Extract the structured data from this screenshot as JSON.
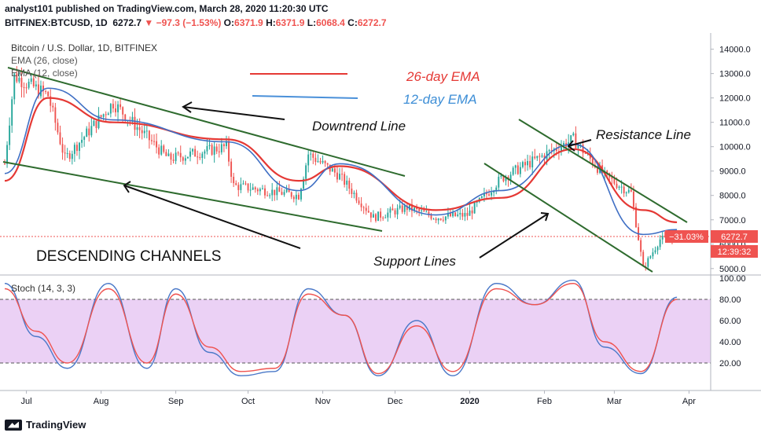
{
  "header": {
    "line1": "analyst101 published on TradingView.com, March 28, 2020 11:20:30 UTC",
    "symbol": "BITFINEX:BTCUSD, 1D",
    "last": "6272.7",
    "change": "▼ −97.3 (−1.53%)",
    "o_label": "O:",
    "o": "6371.9",
    "h_label": "H:",
    "h": "6371.9",
    "l_label": "L:",
    "l": "6068.4",
    "c_label": "C:",
    "c": "6272.7"
  },
  "legend": {
    "title": "Bitcoin / U.S. Dollar, 1D, BITFINEX",
    "ema26": "EMA (26, close)",
    "ema12": "EMA (12, close)"
  },
  "annotations": {
    "ema26": "26-day EMA",
    "ema12": "12-day EMA",
    "downtrend": "Downtrend Line",
    "resistance": "Resistance Line",
    "support": "Support Lines",
    "channels": "DESCENDING CHANNELS"
  },
  "price_tags": {
    "change_pct": "−31.03%",
    "last": "6272.7",
    "countdown": "12:39:32"
  },
  "stoch_label": "Stoch (14, 3, 3)",
  "footer": {
    "brand": "TradingView"
  },
  "colors": {
    "up": "#26a69a",
    "down": "#ef5350",
    "ema26": "#e53935",
    "ema12": "#3f6fc4",
    "trend": "#2e6b2e",
    "stoch_k": "#4a78c8",
    "stoch_d": "#ef5350",
    "stoch_band": "#e6c6f2"
  },
  "chart_data": [
    {
      "type": "candlestick",
      "y_axis": {
        "range": [
          4800,
          14600
        ],
        "ticks": [
          "5000.0",
          "6000.0",
          "7000.0",
          "8000.0",
          "9000.0",
          "10000.0",
          "11000.0",
          "12000.0",
          "13000.0",
          "14000.0"
        ]
      },
      "x_axis": {
        "labels": [
          "Jul",
          "Aug",
          "Sep",
          "Oct",
          "Nov",
          "Dec",
          "2020",
          "Feb",
          "Mar",
          "Apr"
        ]
      },
      "price_anchors": {
        "x": [
          "2019-06-22",
          "2019-06-26",
          "2019-07-10",
          "2019-07-17",
          "2019-08-06",
          "2019-08-29",
          "2019-09-22",
          "2019-09-25",
          "2019-10-22",
          "2019-10-26",
          "2019-11-08",
          "2019-11-22",
          "2019-12-06",
          "2019-12-18",
          "2019-12-31",
          "2020-01-14",
          "2020-02-13",
          "2020-02-26",
          "2020-03-08",
          "2020-03-13",
          "2020-03-20",
          "2020-03-27"
        ],
        "close": [
          9300,
          12900,
          12100,
          9500,
          11800,
          9500,
          10000,
          8400,
          8000,
          9700,
          8800,
          7100,
          7500,
          7100,
          7200,
          8700,
          10300,
          8800,
          8100,
          5000,
          6200,
          6272.7
        ]
      }
    },
    {
      "type": "line",
      "name": "EMA (26, close)",
      "x": [
        "2019-06-22",
        "2019-07-10",
        "2019-08-06",
        "2019-09-22",
        "2019-10-22",
        "2019-11-08",
        "2019-12-18",
        "2020-01-14",
        "2020-02-13",
        "2020-03-13",
        "2020-03-27"
      ],
      "y": [
        8600,
        12000,
        11000,
        10300,
        8600,
        9200,
        7400,
        7900,
        9900,
        7400,
        6900
      ]
    },
    {
      "type": "line",
      "name": "EMA (12, close)",
      "x": [
        "2019-06-22",
        "2019-07-10",
        "2019-08-06",
        "2019-09-22",
        "2019-10-22",
        "2019-11-08",
        "2019-12-18",
        "2020-01-14",
        "2020-02-13",
        "2020-03-13",
        "2020-03-27"
      ],
      "y": [
        8900,
        12400,
        11100,
        10200,
        8200,
        9300,
        7200,
        8200,
        10100,
        6400,
        6600
      ]
    },
    {
      "type": "line",
      "name": "Stoch (14, 3, 3)",
      "y_axis": {
        "range": [
          0,
          100
        ],
        "ticks": [
          "20.00",
          "40.00",
          "60.00",
          "80.00",
          "100.00"
        ],
        "bands": [
          20,
          80
        ]
      },
      "x": [
        "2019-06-22",
        "2019-07-05",
        "2019-07-18",
        "2019-08-04",
        "2019-08-20",
        "2019-09-01",
        "2019-09-15",
        "2019-09-28",
        "2019-10-12",
        "2019-10-26",
        "2019-11-10",
        "2019-11-24",
        "2019-12-10",
        "2019-12-25",
        "2020-01-12",
        "2020-01-28",
        "2020-02-13",
        "2020-02-26",
        "2020-03-12",
        "2020-03-27"
      ],
      "k": [
        95,
        45,
        15,
        95,
        15,
        90,
        30,
        8,
        12,
        90,
        65,
        8,
        60,
        8,
        95,
        75,
        98,
        35,
        10,
        82
      ],
      "d": [
        90,
        50,
        20,
        90,
        20,
        85,
        35,
        12,
        15,
        85,
        65,
        10,
        55,
        12,
        90,
        75,
        95,
        40,
        12,
        80
      ]
    }
  ]
}
